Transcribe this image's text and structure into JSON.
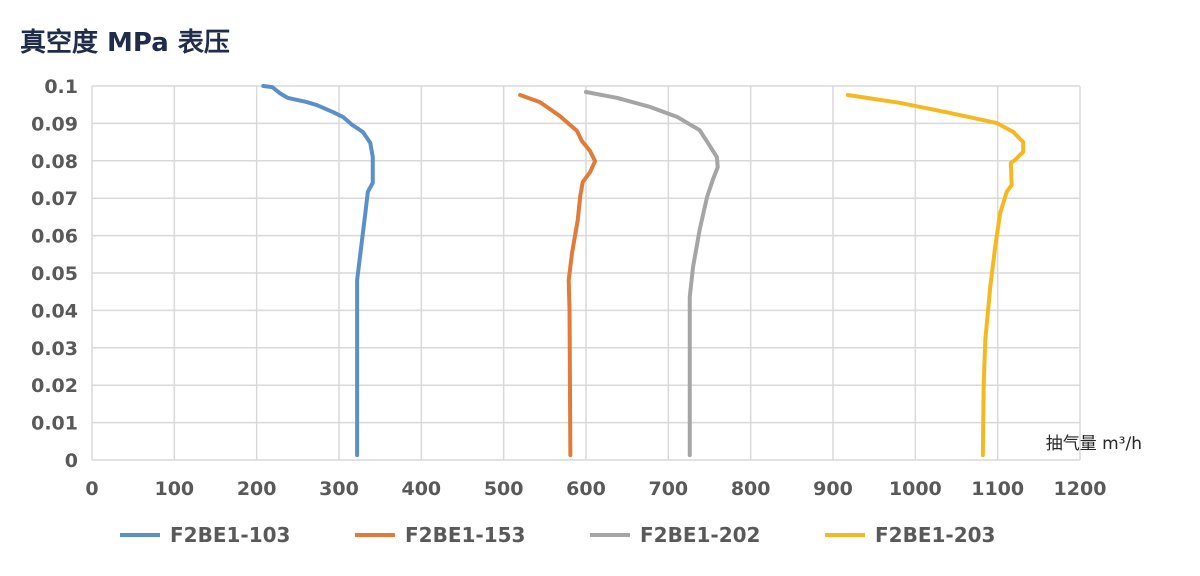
{
  "chart_data": {
    "type": "line",
    "title": "真空度 MPa 表压",
    "xlabel": "抽气量 m³/h",
    "ylabel": "",
    "xlim": [
      0,
      1200
    ],
    "ylim": [
      0,
      0.1
    ],
    "xticks": [
      "0",
      "100",
      "200",
      "300",
      "400",
      "500",
      "600",
      "700",
      "800",
      "900",
      "1000",
      "1100",
      "1200"
    ],
    "yticks": [
      "0.1",
      "0.09",
      "0.08",
      "0.07",
      "0.06",
      "0.05",
      "0.04",
      "0.03",
      "0.02",
      "0.01",
      "0"
    ],
    "grid": true,
    "legend": "bottom",
    "series": [
      {
        "name": "F2BE1-103",
        "color": "#5b8fc9",
        "points": [
          [
            208,
            0.1
          ],
          [
            219,
            0.0997
          ],
          [
            228,
            0.0981
          ],
          [
            238,
            0.0968
          ],
          [
            261,
            0.0957
          ],
          [
            273,
            0.0949
          ],
          [
            293,
            0.093
          ],
          [
            305,
            0.0917
          ],
          [
            316,
            0.0896
          ],
          [
            329,
            0.0877
          ],
          [
            338,
            0.0848
          ],
          [
            341,
            0.081
          ],
          [
            341,
            0.0749
          ],
          [
            341,
            0.0741
          ],
          [
            335,
            0.0717
          ],
          [
            332,
            0.066
          ],
          [
            326,
            0.0553
          ],
          [
            322,
            0.0481
          ],
          [
            322,
            0.04
          ],
          [
            322,
            0.0013
          ]
        ]
      },
      {
        "name": "F2BE1-153",
        "color": "#e07b39",
        "points": [
          [
            520,
            0.0976
          ],
          [
            544,
            0.0957
          ],
          [
            568,
            0.092
          ],
          [
            589,
            0.088
          ],
          [
            595,
            0.0853
          ],
          [
            605,
            0.0826
          ],
          [
            611,
            0.0799
          ],
          [
            605,
            0.077
          ],
          [
            596,
            0.0743
          ],
          [
            593,
            0.0706
          ],
          [
            590,
            0.0642
          ],
          [
            583,
            0.0553
          ],
          [
            579,
            0.0481
          ],
          [
            580,
            0.04
          ],
          [
            581,
            0.0013
          ]
        ]
      },
      {
        "name": "F2BE1-202",
        "color": "#a5a5a5",
        "points": [
          [
            600,
            0.0984
          ],
          [
            638,
            0.0968
          ],
          [
            678,
            0.0944
          ],
          [
            711,
            0.0917
          ],
          [
            738,
            0.0882
          ],
          [
            748,
            0.0848
          ],
          [
            759,
            0.081
          ],
          [
            760,
            0.0783
          ],
          [
            754,
            0.0749
          ],
          [
            747,
            0.0703
          ],
          [
            738,
            0.0615
          ],
          [
            730,
            0.0516
          ],
          [
            726,
            0.0436
          ],
          [
            726,
            0.03
          ],
          [
            726,
            0.0013
          ]
        ]
      },
      {
        "name": "F2BE1-203",
        "color": "#f5b820",
        "points": [
          [
            918,
            0.0976
          ],
          [
            981,
            0.0955
          ],
          [
            1042,
            0.0928
          ],
          [
            1099,
            0.0901
          ],
          [
            1119,
            0.0877
          ],
          [
            1131,
            0.085
          ],
          [
            1131,
            0.0824
          ],
          [
            1121,
            0.0802
          ],
          [
            1116,
            0.0794
          ],
          [
            1117,
            0.0735
          ],
          [
            1111,
            0.0717
          ],
          [
            1103,
            0.066
          ],
          [
            1097,
            0.057
          ],
          [
            1091,
            0.0463
          ],
          [
            1085,
            0.0321
          ],
          [
            1083,
            0.02
          ],
          [
            1082,
            0.0013
          ]
        ]
      }
    ]
  }
}
